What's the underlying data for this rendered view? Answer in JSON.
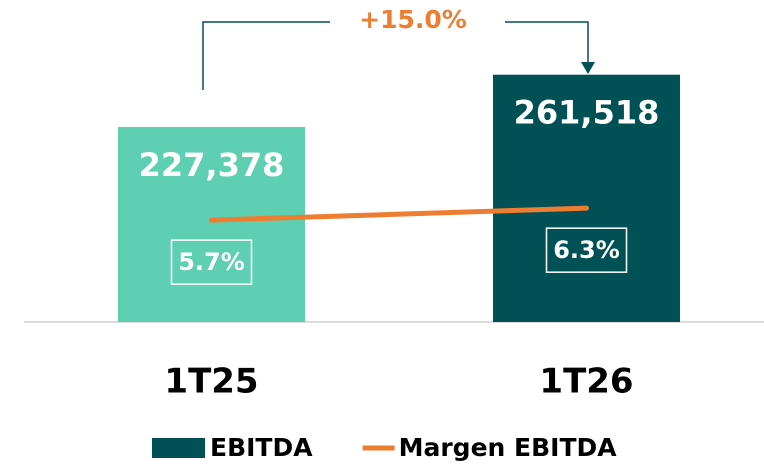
{
  "chart_data": {
    "type": "bar-line",
    "categories": [
      "1T25",
      "1T26"
    ],
    "series": [
      {
        "name": "EBITDA",
        "type": "bar",
        "color": "#005155",
        "colors": [
          "#5ecfb1",
          "#005155"
        ],
        "values": [
          227378,
          261518
        ],
        "value_labels": [
          "227,378",
          "261,518"
        ]
      },
      {
        "name": "Margen EBITDA",
        "type": "line",
        "axis": "y2",
        "color": "#ed7d31",
        "values": [
          5.7,
          6.3
        ],
        "value_labels": [
          "5.7%",
          "6.3%"
        ]
      }
    ],
    "annotation": "+15.0%",
    "ylim": [
      100000,
      280000
    ],
    "y2lim": [
      0.6,
      14.4
    ],
    "grid": false,
    "legend": "bottom"
  }
}
